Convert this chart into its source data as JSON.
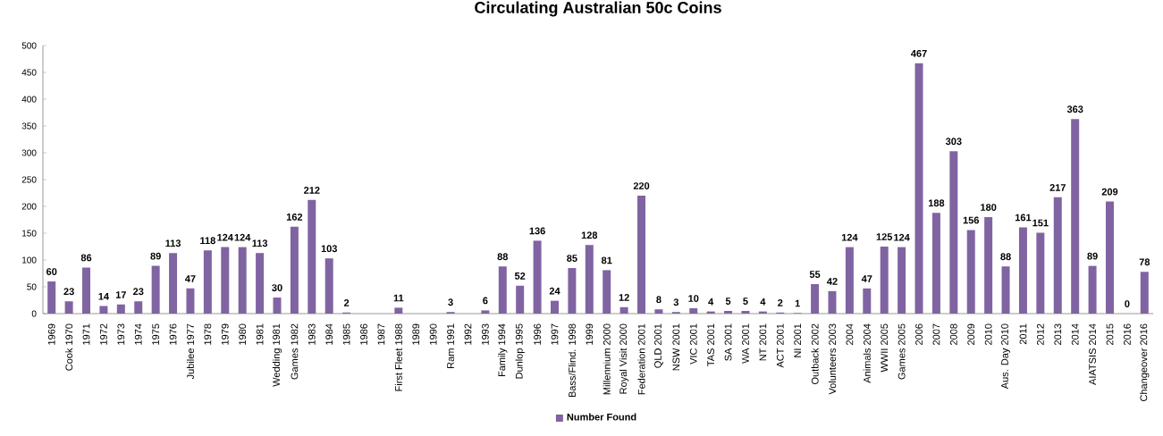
{
  "chart_data": {
    "type": "bar",
    "title": "Circulating Australian 50c Coins",
    "categories": [
      "1969",
      "Cook 1970",
      "1971",
      "1972",
      "1973",
      "1974",
      "1975",
      "1976",
      "Jubilee 1977",
      "1978",
      "1979",
      "1980",
      "1981",
      "Wedding 1981",
      "Games 1982",
      "1983",
      "1984",
      "1985",
      "1986",
      "1987",
      "First Fleet 1988",
      "1989",
      "1990",
      "Ram 1991",
      "1992",
      "1993",
      "Family 1994",
      "Dunlop 1995",
      "1996",
      "1997",
      "Bass/Flind. 1998",
      "1999",
      "Millennium 2000",
      "Royal Visit 2000",
      "Federation 2001",
      "QLD 2001",
      "NSW 2001",
      "VIC 2001",
      "TAS 2001",
      "SA 2001",
      "WA 2001",
      "NT 2001",
      "ACT 2001",
      "NI 2001",
      "Outback 2002",
      "Volunteers 2003",
      "2004",
      "Animals 2004",
      "WWII 2005",
      "Games 2005",
      "2006",
      "2007",
      "2008",
      "2009",
      "2010",
      "Aus. Day 2010",
      "2011",
      "2012",
      "2013",
      "2014",
      "AIATSIS 2014",
      "2015",
      "2016",
      "Changeover 2016"
    ],
    "series": [
      {
        "name": "Number Found",
        "color": "#8064a2",
        "values": [
          60,
          23,
          86,
          14,
          17,
          23,
          89,
          113,
          47,
          118,
          124,
          124,
          113,
          30,
          162,
          212,
          103,
          2,
          null,
          null,
          11,
          null,
          null,
          3,
          null,
          6,
          88,
          52,
          136,
          24,
          85,
          128,
          81,
          12,
          220,
          8,
          3,
          10,
          4,
          5,
          5,
          4,
          2,
          1,
          55,
          42,
          124,
          47,
          125,
          124,
          467,
          188,
          303,
          156,
          180,
          88,
          161,
          151,
          217,
          363,
          89,
          209,
          0,
          78
        ]
      }
    ],
    "ylim": [
      0,
      500
    ],
    "yticks": [
      0,
      50,
      100,
      150,
      200,
      250,
      300,
      350,
      400,
      450,
      500
    ],
    "data_labels": true,
    "legend": "bottom",
    "grid": false
  }
}
